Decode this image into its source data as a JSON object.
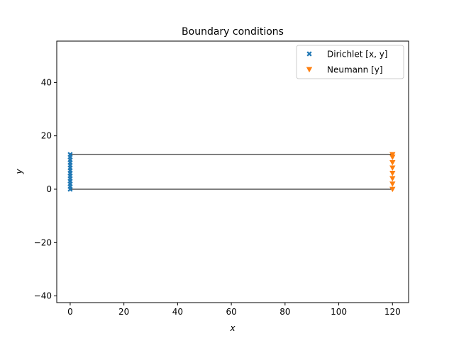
{
  "chart_data": {
    "type": "scatter",
    "title": "Boundary conditions",
    "xlabel": "x",
    "ylabel": "y",
    "xlim": [
      -5,
      126
    ],
    "ylim": [
      -42.5,
      55.5
    ],
    "xticks": [
      0,
      20,
      40,
      60,
      80,
      100,
      120
    ],
    "yticks": [
      -40,
      -20,
      0,
      20,
      40
    ],
    "legend": "top-right",
    "grid": false,
    "outline": [
      [
        [
          0,
          0
        ],
        [
          120,
          0
        ]
      ],
      [
        [
          0,
          13
        ],
        [
          120,
          13
        ]
      ]
    ],
    "series": [
      {
        "name": "Dirichlet  [x, y]",
        "marker": "x",
        "color": "#1f77b4",
        "x": [
          0,
          0,
          0,
          0,
          0,
          0,
          0,
          0,
          0,
          0,
          0,
          0,
          0,
          0
        ],
        "y": [
          0,
          1,
          2,
          3,
          4,
          5,
          6,
          7,
          8,
          9,
          10,
          11,
          12,
          13
        ]
      },
      {
        "name": "Neumann  [y]",
        "marker": "triangle-down",
        "color": "#ff7f0e",
        "x": [
          120,
          120,
          120,
          120,
          120,
          120,
          120,
          120
        ],
        "y": [
          0,
          2,
          4,
          6,
          8,
          10,
          12,
          13
        ]
      }
    ]
  }
}
